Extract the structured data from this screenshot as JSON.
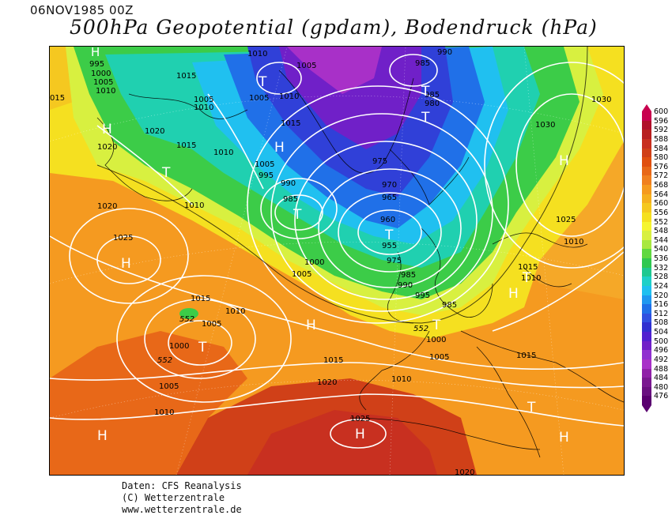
{
  "header": {
    "date": "06NOV1985 00Z",
    "title": "500hPa Geopotential (gpdam), Bodendruck (hPa)"
  },
  "credits": {
    "line1": "Daten: CFS Reanalysis",
    "line2": "(C) Wetterzentrale",
    "line3": "www.wetterzentrale.de"
  },
  "colorbar": {
    "levels": [
      "600",
      "596",
      "592",
      "588",
      "584",
      "580",
      "576",
      "572",
      "568",
      "564",
      "560",
      "556",
      "552",
      "548",
      "544",
      "540",
      "536",
      "532",
      "528",
      "524",
      "520",
      "516",
      "512",
      "508",
      "504",
      "500",
      "496",
      "492",
      "488",
      "484",
      "480",
      "476"
    ],
    "colors": [
      "#c8004e",
      "#b0102a",
      "#b82020",
      "#c83020",
      "#d04018",
      "#e05010",
      "#e86818",
      "#f08020",
      "#f59a20",
      "#f5b020",
      "#f5c820",
      "#f5e020",
      "#f5f530",
      "#d8f040",
      "#a8e840",
      "#60d840",
      "#30c850",
      "#20c890",
      "#20d0c8",
      "#20c0f0",
      "#2098f0",
      "#2070e8",
      "#3050e0",
      "#3030d0",
      "#5020d0",
      "#7020c8",
      "#9030d0",
      "#a830c8",
      "#9020a8",
      "#7a1890",
      "#6a1080",
      "#5a0070"
    ]
  },
  "map": {
    "isobar_labels": [
      "1010",
      "995",
      "1000",
      "1005",
      "1010",
      "015",
      "1015",
      "1005",
      "1010",
      "1005",
      "1010",
      "1005",
      "985",
      "990",
      "985",
      "980",
      "1030",
      "1030",
      "1020",
      "1015",
      "1010",
      "1015",
      "1020",
      "1010",
      "1005",
      "995",
      "990",
      "985",
      "975",
      "970",
      "965",
      "960",
      "955",
      "975",
      "985",
      "990",
      "995",
      "985",
      "1000",
      "1005",
      "1020",
      "1025",
      "1015",
      "1025",
      "1010",
      "1015",
      "1010",
      "1005",
      "1000",
      "1005",
      "1010",
      "1015",
      "1000",
      "1005",
      "1010",
      "1015",
      "1020",
      "1010",
      "1025"
    ],
    "highs_lows": [
      "H",
      "T",
      "T",
      "H",
      "T",
      "H",
      "T",
      "T",
      "H",
      "T",
      "H",
      "H",
      "H",
      "T",
      "T",
      "T",
      "H",
      "H",
      "H",
      "T"
    ],
    "geopotential_labels": [
      "552",
      "552",
      "552"
    ],
    "cut_label": "1020"
  }
}
